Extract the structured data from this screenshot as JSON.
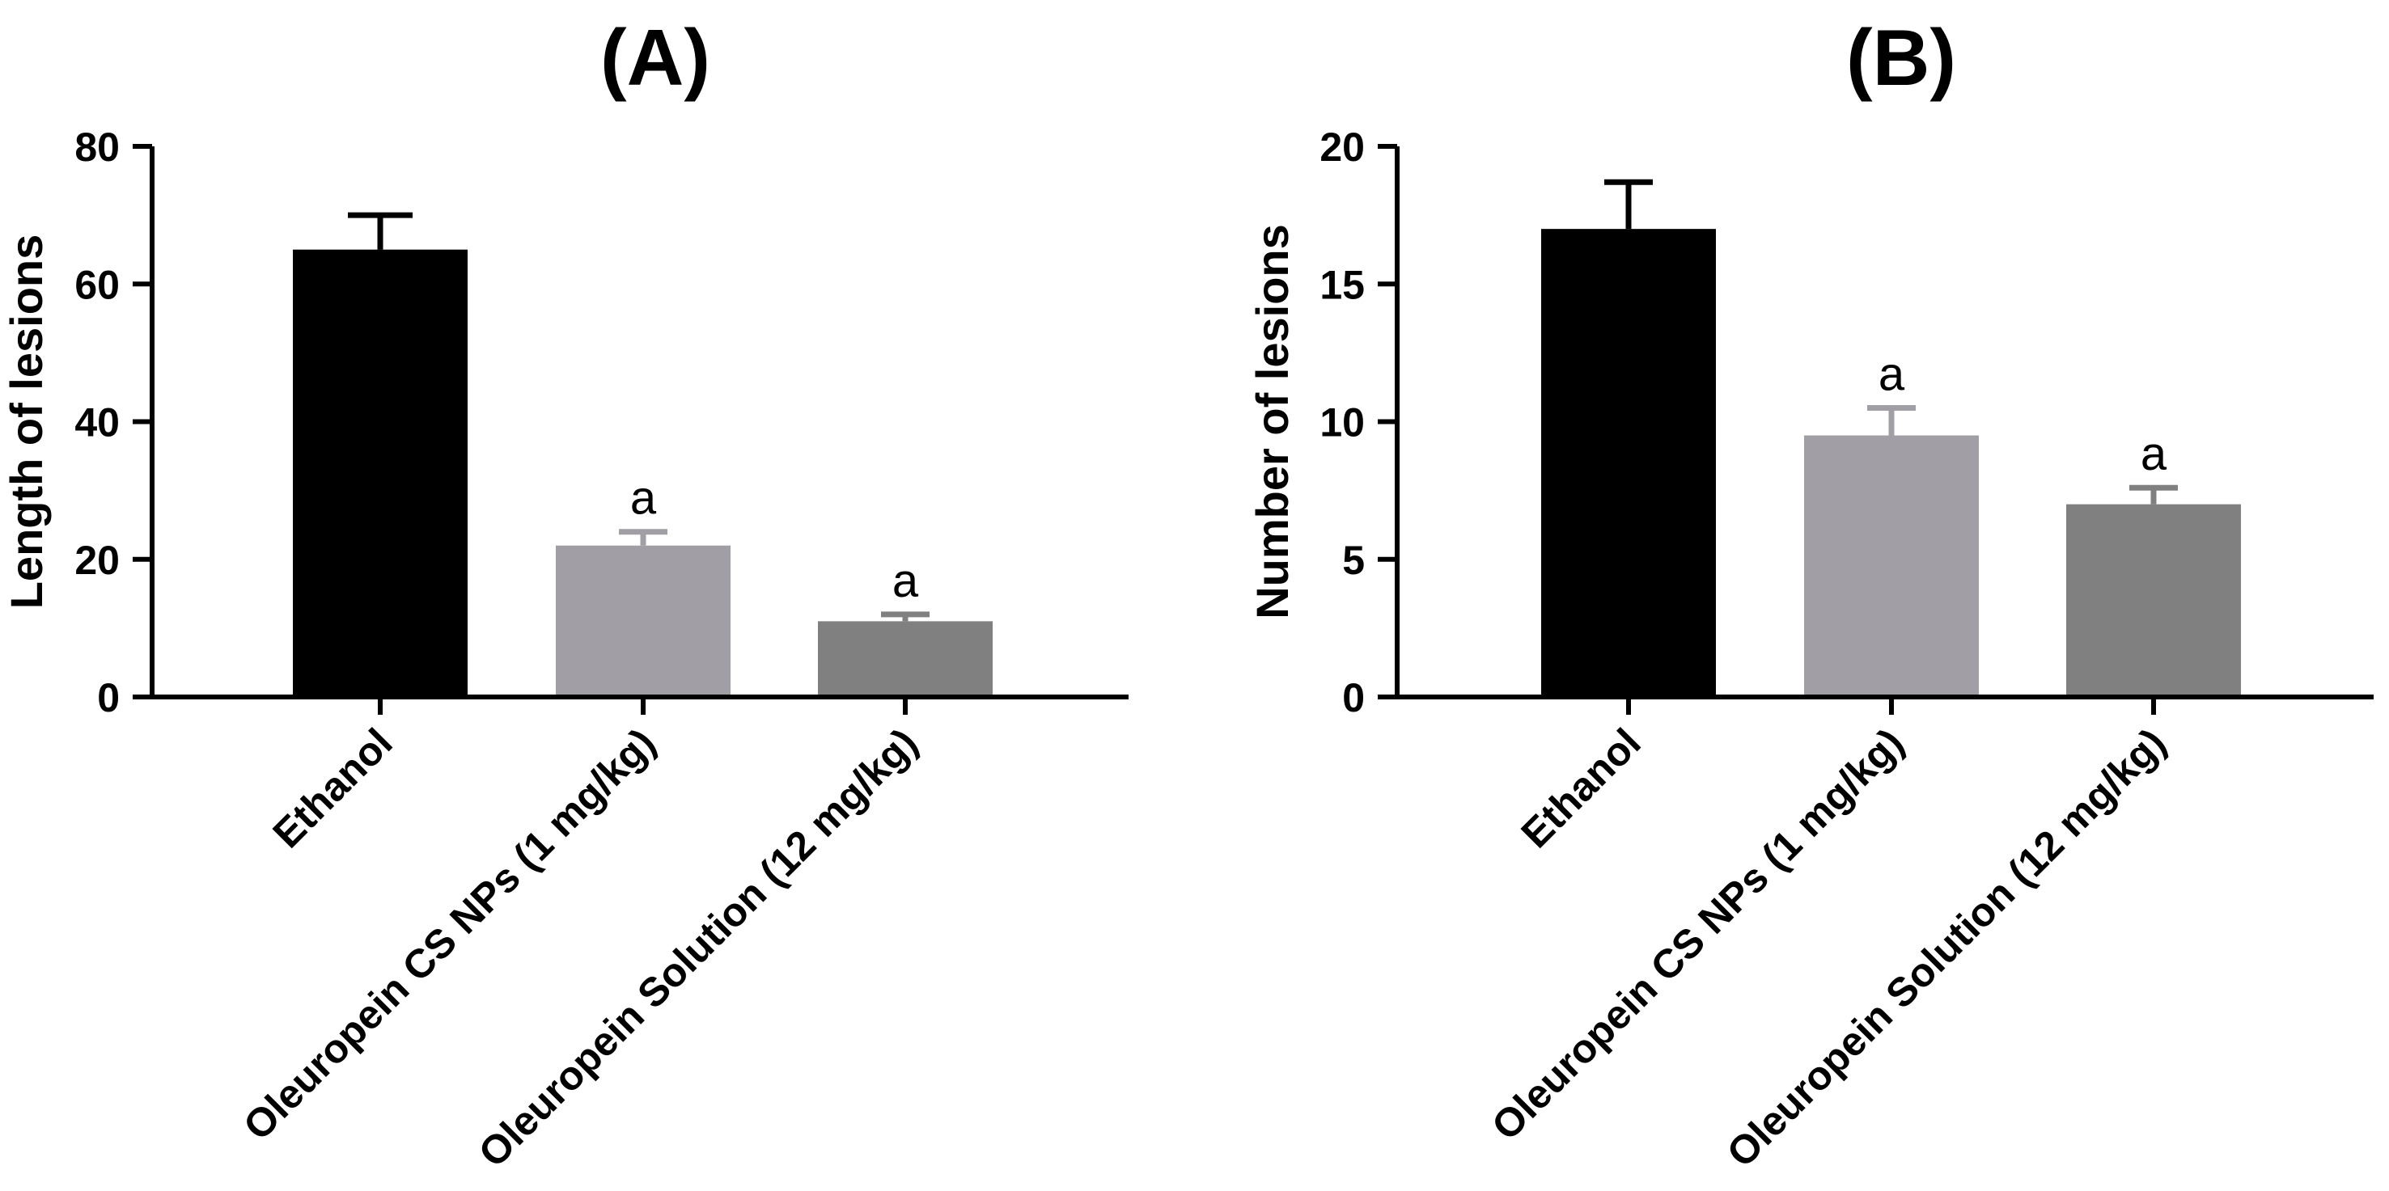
{
  "chart_data": [
    {
      "type": "bar",
      "panel_label": "(A)",
      "title": "",
      "xlabel": "",
      "ylabel": "Length of lesions",
      "ylim": [
        0,
        80
      ],
      "yticks": [
        0,
        20,
        40,
        60,
        80
      ],
      "grid": false,
      "categories": [
        "Ethanol",
        "Oleuropein CS NPs (1 mg/kg)",
        "Oleuropein Solution (12 mg/kg)"
      ],
      "values": [
        65,
        22,
        11
      ],
      "errors": [
        5,
        2,
        1
      ],
      "annotations": [
        "",
        "a",
        "a"
      ],
      "colors": [
        "#000000",
        "#a19fa5",
        "#808080"
      ]
    },
    {
      "type": "bar",
      "panel_label": "(B)",
      "title": "",
      "xlabel": "",
      "ylabel": "Number of lesions",
      "ylim": [
        0,
        20
      ],
      "yticks": [
        0,
        5,
        10,
        15,
        20
      ],
      "grid": false,
      "categories": [
        "Ethanol",
        "Oleuropein CS NPs (1 mg/kg)",
        "Oleuropein Solution (12 mg/kg)"
      ],
      "values": [
        17,
        9.5,
        7
      ],
      "errors": [
        1.7,
        1,
        0.6
      ],
      "annotations": [
        "",
        "a",
        "a"
      ],
      "colors": [
        "#000000",
        "#a19fa5",
        "#808080"
      ]
    }
  ]
}
